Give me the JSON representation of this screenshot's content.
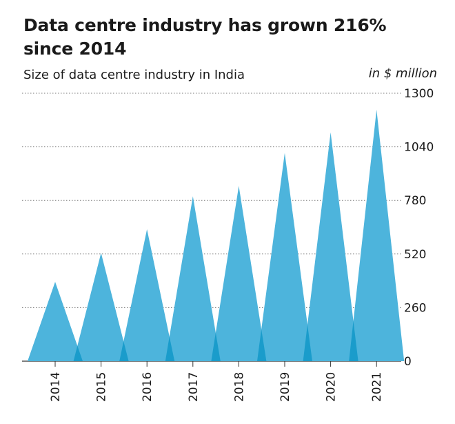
{
  "chart_data": {
    "type": "area",
    "title": "Data centre industry has grown 216% since 2014",
    "subtitle": "Size of data centre industry in India",
    "unit_label": "in $ million",
    "categories": [
      "2014",
      "2015",
      "2016",
      "2017",
      "2018",
      "2019",
      "2020",
      "2021"
    ],
    "values": [
      385,
      525,
      640,
      800,
      850,
      1010,
      1110,
      1220
    ],
    "ylim": [
      0,
      1300
    ],
    "yticks": [
      0,
      260,
      520,
      780,
      1040,
      1300
    ],
    "grid": true,
    "colors": {
      "fill": "#4db4dc",
      "overlap": "#1a9ccb",
      "grid": "#7a7a7a"
    }
  }
}
